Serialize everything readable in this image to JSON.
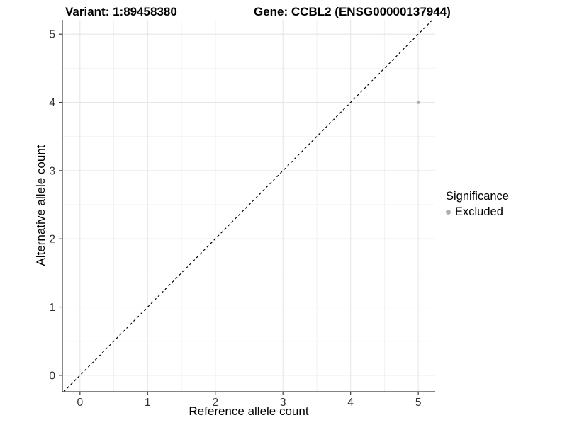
{
  "chart_data": {
    "type": "scatter",
    "titles": {
      "left": "Variant: 1:89458380",
      "right": "Gene: CCBL2 (ENSG00000137944)"
    },
    "xlabel": "Reference allele count",
    "ylabel": "Alternative allele count",
    "xtick_labels": [
      "0",
      "1",
      "2",
      "3",
      "4",
      "5"
    ],
    "ytick_labels": [
      "0",
      "1",
      "2",
      "3",
      "4",
      "5"
    ],
    "xtick_values": [
      0,
      1,
      2,
      3,
      4,
      5
    ],
    "ytick_values": [
      0,
      1,
      2,
      3,
      4,
      5
    ],
    "minor_tick_values": [
      0.5,
      1.5,
      2.5,
      3.5,
      4.5
    ],
    "xlim": [
      -0.26,
      5.25
    ],
    "ylim": [
      -0.24,
      5.21
    ],
    "grid": "major+minor",
    "identity_line": {
      "equation": "y = x",
      "style": "dashed",
      "color": "#000000"
    },
    "series": [
      {
        "name": "Excluded",
        "color": "#b0b0b0",
        "points": [
          {
            "x": 5,
            "y": 4
          }
        ]
      }
    ],
    "legend": {
      "title": "Significance",
      "position": "right",
      "items": [
        {
          "label": "Excluded",
          "color": "#b0b0b0",
          "marker": "circle"
        }
      ]
    },
    "colors": {
      "grid_major": "#e6e6e6",
      "grid_minor": "#f2f2f2",
      "axis_line": "#3c3c3c",
      "tick_text": "#303030",
      "background": "#ffffff"
    }
  }
}
